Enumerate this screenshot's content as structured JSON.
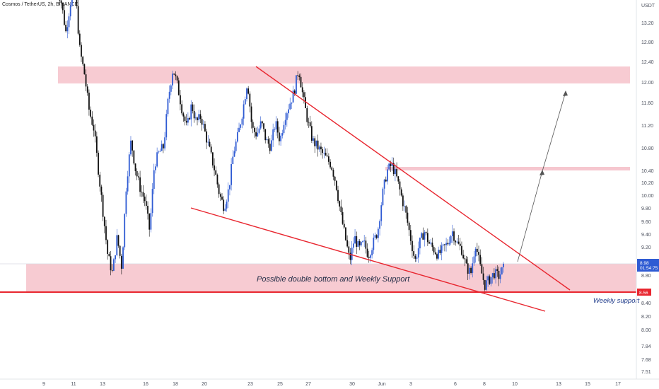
{
  "header": {
    "symbol_line": "Cosmos / TetherUS, 2h, BINANCE"
  },
  "colors": {
    "candle": "#2f5bd3",
    "wick": "#1c2d6e",
    "bear": "#101010",
    "zone": "#f4b9c3",
    "support_line": "#e8262f",
    "trendline": "#e8262f",
    "arrow": "#555555",
    "axis_text": "#4a4f5c",
    "current_badge": "#2f5bd3",
    "support_badge": "#e8262f"
  },
  "chart_data": {
    "type": "candlestick",
    "currency": "USDT",
    "y_ticks": [
      "13.20",
      "12.80",
      "12.40",
      "12.00",
      "11.60",
      "11.20",
      "10.80",
      "10.40",
      "10.20",
      "10.00",
      "9.80",
      "9.60",
      "9.40",
      "9.20",
      "8.80",
      "8.40",
      "8.20",
      "8.00",
      "7.84",
      "7.68",
      "7.51"
    ],
    "x_ticks": [
      "9",
      "11",
      "13",
      "16",
      "18",
      "20",
      "23",
      "25",
      "27",
      "30",
      "Jun",
      "3",
      "6",
      "8",
      "10",
      "13",
      "15",
      "17"
    ],
    "current_price": {
      "label": "8.98",
      "countdown": "01:54:75"
    },
    "support_price": "8.56",
    "annotations": {
      "zone_text": "Possible double bottom and Weekly Support",
      "support_text": "Weekly support"
    },
    "zones": [
      {
        "name": "upper-resistance-zone",
        "from": 12.0,
        "to": 12.35
      },
      {
        "name": "mid-resistance-zone",
        "from": 10.43,
        "to": 10.5
      },
      {
        "name": "support-zone",
        "from": 8.56,
        "to": 8.98
      }
    ],
    "levels": [
      {
        "name": "weekly-support",
        "value": 8.56
      }
    ],
    "price_path": [
      13.7,
      13.4,
      12.9,
      13.4,
      13.6,
      12.6,
      12.2,
      11.6,
      11.3,
      10.6,
      9.9,
      9.2,
      8.9,
      9.5,
      9.0,
      10.4,
      11.1,
      10.6,
      10.3,
      10.1,
      9.6,
      10.7,
      10.9,
      11.0,
      11.8,
      12.3,
      12.0,
      11.6,
      11.3,
      11.7,
      11.4,
      11.5,
      11.2,
      10.9,
      10.6,
      10.2,
      10.0,
      10.3,
      10.9,
      11.2,
      11.6,
      12.1,
      11.3,
      11.2,
      11.4,
      11.1,
      11.0,
      11.4,
      11.1,
      11.5,
      11.7,
      11.9,
      12.3,
      11.8,
      11.4,
      11.1,
      11.0,
      10.9,
      10.8,
      10.7,
      10.4,
      9.9,
      9.5,
      9.1,
      9.5,
      9.3,
      9.4,
      9.2,
      9.4,
      9.6,
      10.2,
      10.6,
      10.7,
      10.5,
      10.2,
      9.9,
      9.5,
      9.1,
      9.4,
      9.6,
      9.4,
      9.3,
      9.2,
      9.3,
      9.4,
      9.6,
      9.4,
      9.3,
      9.0,
      8.9,
      9.4,
      9.0,
      8.7,
      8.8,
      8.9,
      8.85,
      8.98
    ]
  }
}
